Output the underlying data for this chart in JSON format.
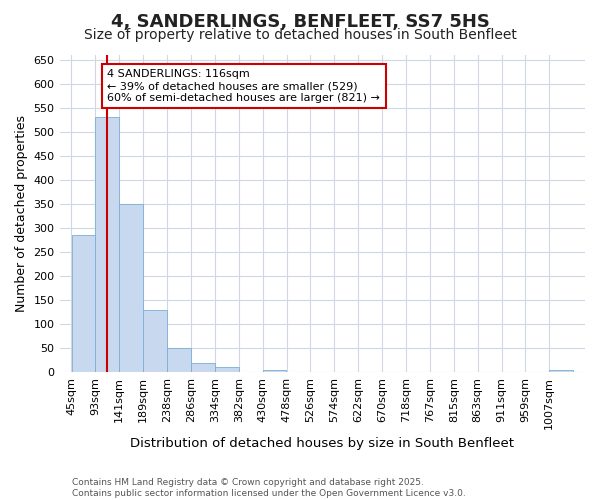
{
  "title": "4, SANDERLINGS, BENFLEET, SS7 5HS",
  "subtitle": "Size of property relative to detached houses in South Benfleet",
  "xlabel": "Distribution of detached houses by size in South Benfleet",
  "ylabel": "Number of detached properties",
  "bin_labels": [
    "45sqm",
    "93sqm",
    "141sqm",
    "189sqm",
    "238sqm",
    "286sqm",
    "334sqm",
    "382sqm",
    "430sqm",
    "478sqm",
    "526sqm",
    "574sqm",
    "622sqm",
    "670sqm",
    "718sqm",
    "767sqm",
    "815sqm",
    "863sqm",
    "911sqm",
    "959sqm",
    "1007sqm"
  ],
  "bin_edges": [
    45,
    93,
    141,
    189,
    238,
    286,
    334,
    382,
    430,
    478,
    526,
    574,
    622,
    670,
    718,
    767,
    815,
    863,
    911,
    959,
    1007
  ],
  "bar_heights": [
    285,
    530,
    350,
    128,
    50,
    18,
    10,
    0,
    5,
    0,
    0,
    0,
    0,
    0,
    0,
    0,
    0,
    0,
    0,
    0,
    4
  ],
  "bar_color": "#c8d8ee",
  "bar_edgecolor": "#7aaed4",
  "property_size": 116,
  "vline_color": "#cc0000",
  "annotation_text": "4 SANDERLINGS: 116sqm\n← 39% of detached houses are smaller (529)\n60% of semi-detached houses are larger (821) →",
  "annotation_box_color": "#ffffff",
  "annotation_box_edgecolor": "#cc0000",
  "ylim": [
    0,
    660
  ],
  "yticks": [
    0,
    50,
    100,
    150,
    200,
    250,
    300,
    350,
    400,
    450,
    500,
    550,
    600,
    650
  ],
  "background_color": "#ffffff",
  "grid_color": "#d0d8e8",
  "footer_text": "Contains HM Land Registry data © Crown copyright and database right 2025.\nContains public sector information licensed under the Open Government Licence v3.0.",
  "title_fontsize": 13,
  "subtitle_fontsize": 10,
  "xlabel_fontsize": 9.5,
  "ylabel_fontsize": 9,
  "annotation_fontsize": 8,
  "tick_fontsize": 8,
  "footer_fontsize": 6.5
}
